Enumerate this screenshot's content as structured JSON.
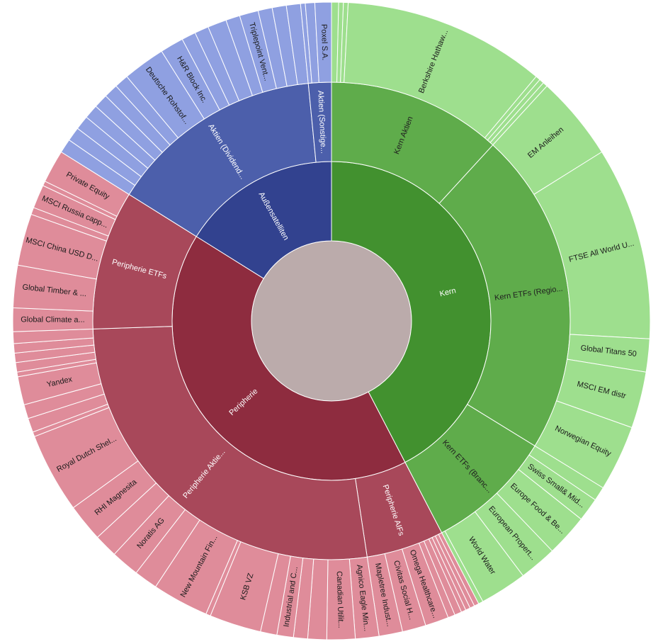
{
  "chart_data": {
    "type": "sunburst",
    "root": {
      "color": "#bbabab",
      "children": [
        {
          "label": "Kern",
          "color": "#42912f",
          "text_color": "#ffffff",
          "children": [
            {
              "label": "Kern Aktien",
              "color": "#5fac4b",
              "text_color": "#202020",
              "children": [
                {
                  "label": "",
                  "value": 1.5,
                  "color": "#9edf8e"
                },
                {
                  "label": "",
                  "value": 1,
                  "color": "#9edf8e"
                },
                {
                  "label": "",
                  "value": 1,
                  "color": "#9edf8e"
                },
                {
                  "label": "Berkshire Hathaw...",
                  "value": 43,
                  "color": "#9edf8e"
                },
                {
                  "label": "",
                  "value": 1,
                  "color": "#9edf8e"
                },
                {
                  "label": "",
                  "value": 1,
                  "color": "#9edf8e"
                },
                {
                  "label": "",
                  "value": 1,
                  "color": "#9edf8e"
                }
              ]
            },
            {
              "label": "Kern ETFs (Regio...",
              "color": "#5fac4b",
              "text_color": "#202020",
              "children": [
                {
                  "label": "EM Anleihen",
                  "value": 18,
                  "color": "#9edf8e"
                },
                {
                  "label": "FTSE All World U...",
                  "value": 41,
                  "color": "#9edf8e"
                },
                {
                  "label": "Global Titans 50",
                  "value": 7,
                  "color": "#9edf8e"
                },
                {
                  "label": "MSCI EM distr",
                  "value": 12,
                  "color": "#9edf8e"
                },
                {
                  "label": "Norwegian Equity",
                  "value": 14,
                  "color": "#9edf8e"
                }
              ]
            },
            {
              "label": "Kern ETFs (Branc...",
              "color": "#5fac4b",
              "text_color": "#202020",
              "children": [
                {
                  "label": "",
                  "value": 3,
                  "color": "#9edf8e"
                },
                {
                  "label": "Swiss Small& Mid...",
                  "value": 5,
                  "color": "#9edf8e"
                },
                {
                  "label": "Europe Food & Be...",
                  "value": 9,
                  "color": "#9edf8e"
                },
                {
                  "label": "European Propert...",
                  "value": 8,
                  "color": "#9edf8e"
                },
                {
                  "label": "World Water",
                  "value": 10,
                  "color": "#9edf8e"
                },
                {
                  "label": "",
                  "value": 1,
                  "color": "#9edf8e"
                }
              ]
            }
          ]
        },
        {
          "label": "Peripherie",
          "color": "#8e2c3f",
          "text_color": "#ffffff",
          "children": [
            {
              "label": "Peripherie AIFs",
              "color": "#a8485a",
              "text_color": "#ffffff",
              "children": [
                {
                  "label": "",
                  "value": 1,
                  "color": "#df8c9a"
                },
                {
                  "label": "",
                  "value": 1,
                  "color": "#df8c9a"
                },
                {
                  "label": "",
                  "value": 1,
                  "color": "#df8c9a"
                },
                {
                  "label": "",
                  "value": 1,
                  "color": "#df8c9a"
                },
                {
                  "label": "",
                  "value": 1.5,
                  "color": "#df8c9a"
                },
                {
                  "label": "",
                  "value": 1.5,
                  "color": "#df8c9a"
                },
                {
                  "label": "Omega Healthcare...",
                  "value": 5,
                  "color": "#df8c9a"
                },
                {
                  "label": "Civitas Social H...",
                  "value": 5,
                  "color": "#df8c9a"
                },
                {
                  "label": "Mapletree Indust...",
                  "value": 5,
                  "color": "#df8c9a"
                }
              ]
            },
            {
              "label": "Peripherie Aktie...",
              "color": "#a8485a",
              "text_color": "#ffffff",
              "children": [
                {
                  "label": "Agnico Eagle Min...",
                  "value": 5,
                  "color": "#df8c9a"
                },
                {
                  "label": "Canadian Utilit...",
                  "value": 6,
                  "color": "#df8c9a"
                },
                {
                  "label": "",
                  "value": 4,
                  "color": "#df8c9a"
                },
                {
                  "label": "",
                  "value": 3,
                  "color": "#df8c9a"
                },
                {
                  "label": "Industrial and C...",
                  "value": 3.5,
                  "color": "#df8c9a"
                },
                {
                  "label": "",
                  "value": 3.5,
                  "color": "#df8c9a"
                },
                {
                  "label": "KSB VZ",
                  "value": 11,
                  "color": "#df8c9a"
                },
                {
                  "label": "",
                  "value": 1,
                  "color": "#df8c9a"
                },
                {
                  "label": "New Mountain Fin...",
                  "value": 12,
                  "color": "#df8c9a"
                },
                {
                  "label": "",
                  "value": 5,
                  "color": "#df8c9a"
                },
                {
                  "label": "Noratis AG",
                  "value": 6,
                  "color": "#df8c9a"
                },
                {
                  "label": "",
                  "value": 5,
                  "color": "#df8c9a"
                },
                {
                  "label": "RHI Magnesita",
                  "value": 8,
                  "color": "#df8c9a"
                },
                {
                  "label": "Royal Dutch Shel...",
                  "value": 17,
                  "color": "#df8c9a"
                },
                {
                  "label": "",
                  "value": 1,
                  "color": "#df8c9a"
                },
                {
                  "label": "",
                  "value": 3,
                  "color": "#df8c9a"
                },
                {
                  "label": "",
                  "value": 3,
                  "color": "#df8c9a"
                },
                {
                  "label": "Yandex",
                  "value": 6,
                  "color": "#df8c9a"
                },
                {
                  "label": "",
                  "value": 1,
                  "color": "#df8c9a"
                },
                {
                  "label": "",
                  "value": 2,
                  "color": "#df8c9a"
                },
                {
                  "label": "",
                  "value": 2,
                  "color": "#df8c9a"
                },
                {
                  "label": "",
                  "value": 2,
                  "color": "#df8c9a"
                },
                {
                  "label": "",
                  "value": 2.5,
                  "color": "#df8c9a"
                }
              ]
            },
            {
              "label": "Peripherie ETFs",
              "color": "#a8485a",
              "text_color": "#ffffff",
              "children": [
                {
                  "label": "Global Climate a...",
                  "value": 5,
                  "color": "#df8c9a"
                },
                {
                  "label": "Global Timber & ...",
                  "value": 9,
                  "color": "#df8c9a"
                },
                {
                  "label": "MSCI China USD D...",
                  "value": 11,
                  "color": "#df8c9a"
                },
                {
                  "label": "",
                  "value": 1.5,
                  "color": "#df8c9a"
                },
                {
                  "label": "MSCI Russia capp...",
                  "value": 5,
                  "color": "#df8c9a"
                },
                {
                  "label": "",
                  "value": 1,
                  "color": "#df8c9a"
                },
                {
                  "label": "Private Equity",
                  "value": 7,
                  "color": "#df8c9a"
                }
              ]
            }
          ]
        },
        {
          "label": "Außensatelliten",
          "color": "#32428f",
          "text_color": "#ffffff",
          "children": [
            {
              "label": "Aktien (Dividend...",
              "color": "#4c5fab",
              "text_color": "#ffffff",
              "children": [
                {
                  "label": "",
                  "value": 3,
                  "color": "#8fa0e1"
                },
                {
                  "label": "",
                  "value": 3,
                  "color": "#8fa0e1"
                },
                {
                  "label": "",
                  "value": 3,
                  "color": "#8fa0e1"
                },
                {
                  "label": "",
                  "value": 3,
                  "color": "#8fa0e1"
                },
                {
                  "label": "",
                  "value": 3,
                  "color": "#8fa0e1"
                },
                {
                  "label": "",
                  "value": 3,
                  "color": "#8fa0e1"
                },
                {
                  "label": "",
                  "value": 3,
                  "color": "#8fa0e1"
                },
                {
                  "label": "Deutsche Rohstof...",
                  "value": 9,
                  "color": "#8fa0e1"
                },
                {
                  "label": "H&R Block Inc.",
                  "value": 5,
                  "color": "#8fa0e1"
                },
                {
                  "label": "",
                  "value": 3,
                  "color": "#8fa0e1"
                },
                {
                  "label": "",
                  "value": 3,
                  "color": "#8fa0e1"
                },
                {
                  "label": "",
                  "value": 4,
                  "color": "#8fa0e1"
                },
                {
                  "label": "",
                  "value": 3,
                  "color": "#8fa0e1"
                },
                {
                  "label": "Triplepoint Vent...",
                  "value": 4,
                  "color": "#8fa0e1"
                },
                {
                  "label": "",
                  "value": 3,
                  "color": "#8fa0e1"
                },
                {
                  "label": "",
                  "value": 3,
                  "color": "#8fa0e1"
                },
                {
                  "label": "",
                  "value": 3,
                  "color": "#8fa0e1"
                }
              ]
            },
            {
              "label": "Aktien (Sonstige...",
              "color": "#4c5fab",
              "text_color": "#ffffff",
              "children": [
                {
                  "label": "",
                  "value": 1,
                  "color": "#8fa0e1"
                },
                {
                  "label": "",
                  "value": 2,
                  "color": "#8fa0e1"
                },
                {
                  "label": "Poxel S.A.",
                  "value": 3.5,
                  "color": "#8fa0e1"
                }
              ]
            }
          ]
        }
      ]
    }
  }
}
